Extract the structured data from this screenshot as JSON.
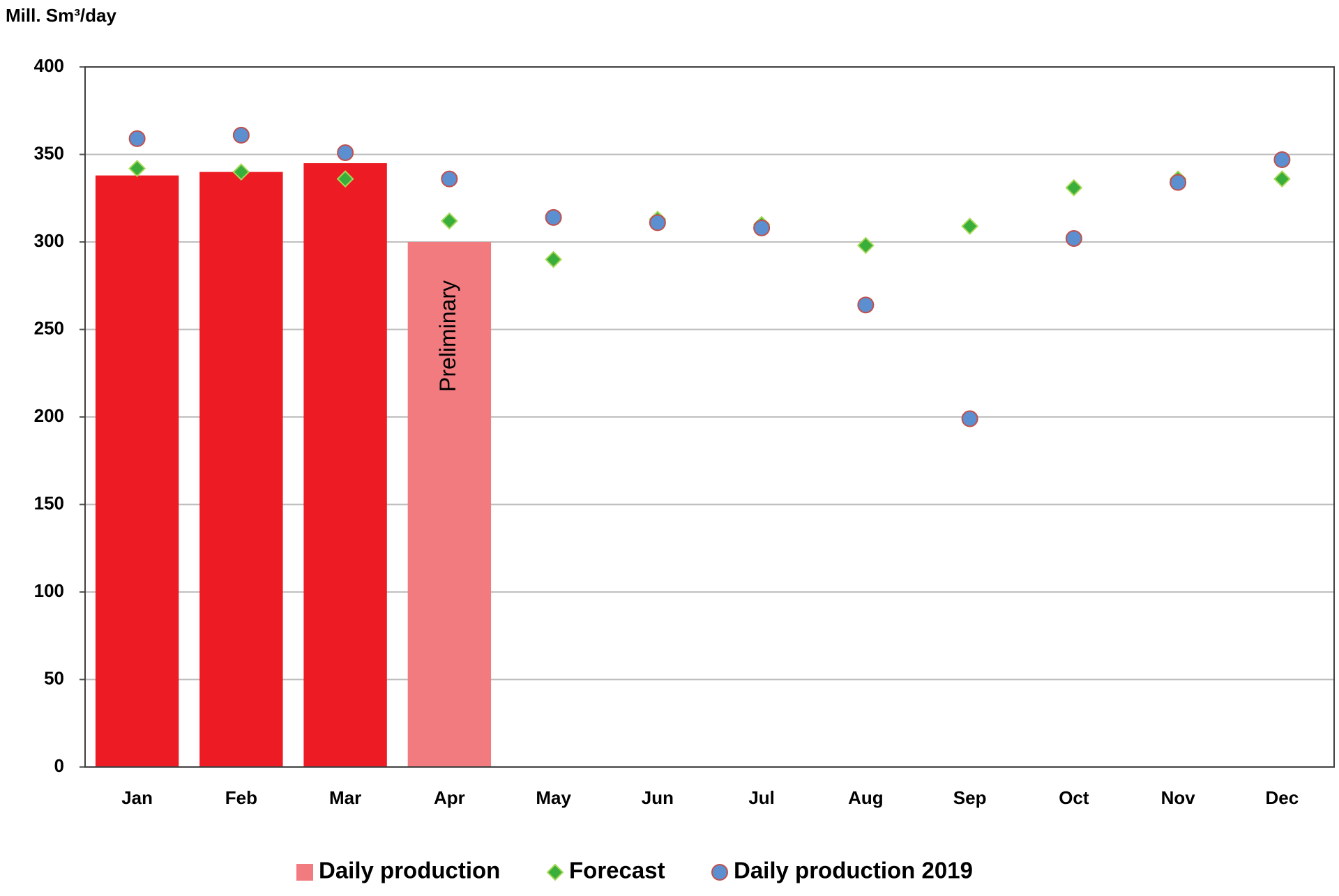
{
  "chart_data": {
    "type": "bar",
    "y_label": "Mill. Sm³/day",
    "categories": [
      "Jan",
      "Feb",
      "Mar",
      "Apr",
      "May",
      "Jun",
      "Jul",
      "Aug",
      "Sep",
      "Oct",
      "Nov",
      "Dec"
    ],
    "series": [
      {
        "name": "Daily production",
        "type": "bar",
        "color": "#f27b80",
        "colors": [
          "#ed1c24",
          "#ed1c24",
          "#ed1c24",
          "#f27b80",
          null,
          null,
          null,
          null,
          null,
          null,
          null,
          null
        ],
        "values": [
          338,
          340,
          345,
          300,
          null,
          null,
          null,
          null,
          null,
          null,
          null,
          null
        ]
      },
      {
        "name": "Forecast",
        "type": "scatter",
        "marker": "diamond",
        "color": "#3aae3a",
        "values": [
          342,
          340,
          336,
          312,
          290,
          313,
          310,
          298,
          309,
          331,
          336,
          336
        ]
      },
      {
        "name": "Daily production 2019",
        "type": "scatter",
        "marker": "circle",
        "color": "#5b8fd0",
        "values": [
          359,
          361,
          351,
          336,
          314,
          311,
          308,
          264,
          199,
          302,
          334,
          347
        ]
      }
    ],
    "annotations": [
      {
        "text": "Preliminary",
        "category": "Apr"
      }
    ],
    "ylim": [
      0,
      400
    ],
    "yticks": [
      0,
      50,
      100,
      150,
      200,
      250,
      300,
      350,
      400
    ],
    "grid": true
  }
}
